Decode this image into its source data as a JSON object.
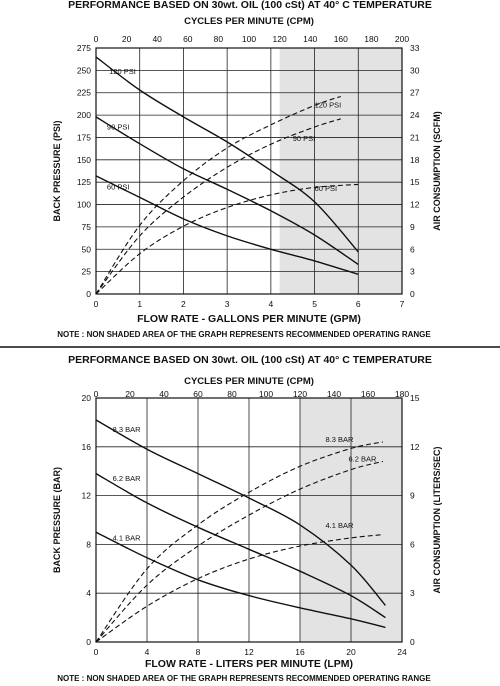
{
  "chart_data": [
    {
      "type": "line",
      "title": "PERFORMANCE  BASED ON 30wt. OIL (100 cSt) AT 40° C TEMPERATURE",
      "xlabel": "FLOW RATE - GALLONS PER MINUTE (GPM)",
      "ylabel": "BACK PRESSURE  (PSI)",
      "y2label": "AIR CONSUMPTION  (SCFM)",
      "x2label": "CYCLES PER MINUTE (CPM)",
      "note": "NOTE : NON SHADED AREA OF THE GRAPH REPRESENTS RECOMMENDED OPERATING RANGE",
      "xlim": [
        0,
        7
      ],
      "ylim": [
        0,
        275
      ],
      "y2lim": [
        0,
        33
      ],
      "x2lim": [
        0,
        200
      ],
      "shaded_from_x": 4.2,
      "xticks": [
        "0",
        "1",
        "2",
        "3",
        "4",
        "5",
        "6",
        "7"
      ],
      "yticks": [
        "0",
        "25",
        "50",
        "75",
        "100",
        "125",
        "150",
        "175",
        "200",
        "225",
        "250",
        "275"
      ],
      "y2ticks": [
        "0",
        "3",
        "6",
        "9",
        "12",
        "15",
        "18",
        "21",
        "24",
        "27",
        "30",
        "33"
      ],
      "x2ticks": [
        "0",
        "20",
        "40",
        "60",
        "80",
        "100",
        "120",
        "140",
        "160",
        "180",
        "200"
      ],
      "series": [
        {
          "name": "120 PSI",
          "style": "solid",
          "x": [
            0,
            1,
            2,
            3,
            4,
            5,
            6
          ],
          "y": [
            265,
            228,
            198,
            170,
            138,
            103,
            47
          ]
        },
        {
          "name": "90 PSI",
          "style": "solid",
          "x": [
            0,
            1,
            2,
            3,
            4,
            5,
            6
          ],
          "y": [
            198,
            168,
            140,
            117,
            93,
            66,
            33
          ]
        },
        {
          "name": "60 PSI",
          "style": "solid",
          "x": [
            0,
            1,
            2,
            3,
            4,
            5,
            6
          ],
          "y": [
            132,
            108,
            84,
            65,
            50,
            37,
            22
          ]
        },
        {
          "name": "120 PSI",
          "style": "dashed",
          "axis": "y2",
          "x": [
            0,
            1,
            2,
            3,
            4,
            5,
            5.6
          ],
          "y": [
            0,
            9.2,
            15.2,
            19.6,
            22.7,
            25.3,
            26.5
          ]
        },
        {
          "name": "90 PSI",
          "style": "dashed",
          "axis": "y2",
          "x": [
            0,
            1,
            2,
            3,
            4,
            5,
            5.6
          ],
          "y": [
            0,
            7.8,
            13.0,
            17.0,
            20.1,
            22.4,
            23.5
          ]
        },
        {
          "name": "60 PSI",
          "style": "dashed",
          "axis": "y2",
          "x": [
            0,
            1,
            2,
            3,
            4,
            5,
            6
          ],
          "y": [
            0,
            5.4,
            9.1,
            11.6,
            13.3,
            14.3,
            14.7
          ]
        }
      ]
    },
    {
      "type": "line",
      "title": "PERFORMANCE  BASED ON 30wt. OIL (100 cSt) AT 40° C TEMPERATURE",
      "xlabel": "FLOW RATE - LITERS PER MINUTE (LPM)",
      "ylabel": "BACK PRESSURE (BAR)",
      "y2label": "AIR CONSUMPTION  (LITERS/SEC)",
      "x2label": "CYCLES PER MINUTE (CPM)",
      "note": "NOTE : NON SHADED AREA OF THE GRAPH REPRESENTS RECOMMENDED OPERATING RANGE",
      "xlim": [
        0,
        24
      ],
      "ylim": [
        0,
        20
      ],
      "y2lim": [
        0,
        15
      ],
      "x2lim": [
        0,
        180
      ],
      "shaded_from_x": 16,
      "xticks": [
        "0",
        "4",
        "8",
        "12",
        "16",
        "20",
        "24"
      ],
      "yticks": [
        "0",
        "4",
        "8",
        "12",
        "16",
        "20"
      ],
      "y2ticks": [
        "0",
        "3",
        "6",
        "9",
        "12",
        "15"
      ],
      "x2ticks": [
        "0",
        "20",
        "40",
        "60",
        "80",
        "100",
        "120",
        "140",
        "160",
        "180"
      ],
      "series": [
        {
          "name": "8.3 BAR",
          "style": "solid",
          "x": [
            0,
            4,
            8,
            12,
            16,
            20,
            22.7
          ],
          "y": [
            18.2,
            15.8,
            13.8,
            11.8,
            9.6,
            6.3,
            3.0
          ]
        },
        {
          "name": "6.2 BAR",
          "style": "solid",
          "x": [
            0,
            4,
            8,
            12,
            16,
            20,
            22.7
          ],
          "y": [
            13.8,
            11.4,
            9.4,
            7.6,
            5.8,
            3.8,
            2.0
          ]
        },
        {
          "name": "4.1 BAR",
          "style": "solid",
          "x": [
            0,
            4,
            8,
            12,
            16,
            20,
            22.7
          ],
          "y": [
            9.0,
            6.9,
            5.1,
            3.8,
            2.8,
            1.9,
            1.2
          ]
        },
        {
          "name": "8.3 BAR",
          "style": "dashed",
          "axis": "y2",
          "x": [
            0,
            4,
            8,
            12,
            16,
            20,
            22.5
          ],
          "y": [
            0,
            4.5,
            7.2,
            9.2,
            10.8,
            11.9,
            12.3
          ]
        },
        {
          "name": "6.2 BAR",
          "style": "dashed",
          "axis": "y2",
          "x": [
            0,
            4,
            8,
            12,
            16,
            20,
            22.5
          ],
          "y": [
            0,
            3.5,
            5.9,
            7.8,
            9.4,
            10.6,
            11.1
          ]
        },
        {
          "name": "4.1 BAR",
          "style": "dashed",
          "axis": "y2",
          "x": [
            0,
            4,
            8,
            12,
            16,
            20,
            22.5
          ],
          "y": [
            0,
            2.2,
            3.9,
            5.1,
            5.9,
            6.4,
            6.6
          ]
        }
      ]
    }
  ]
}
